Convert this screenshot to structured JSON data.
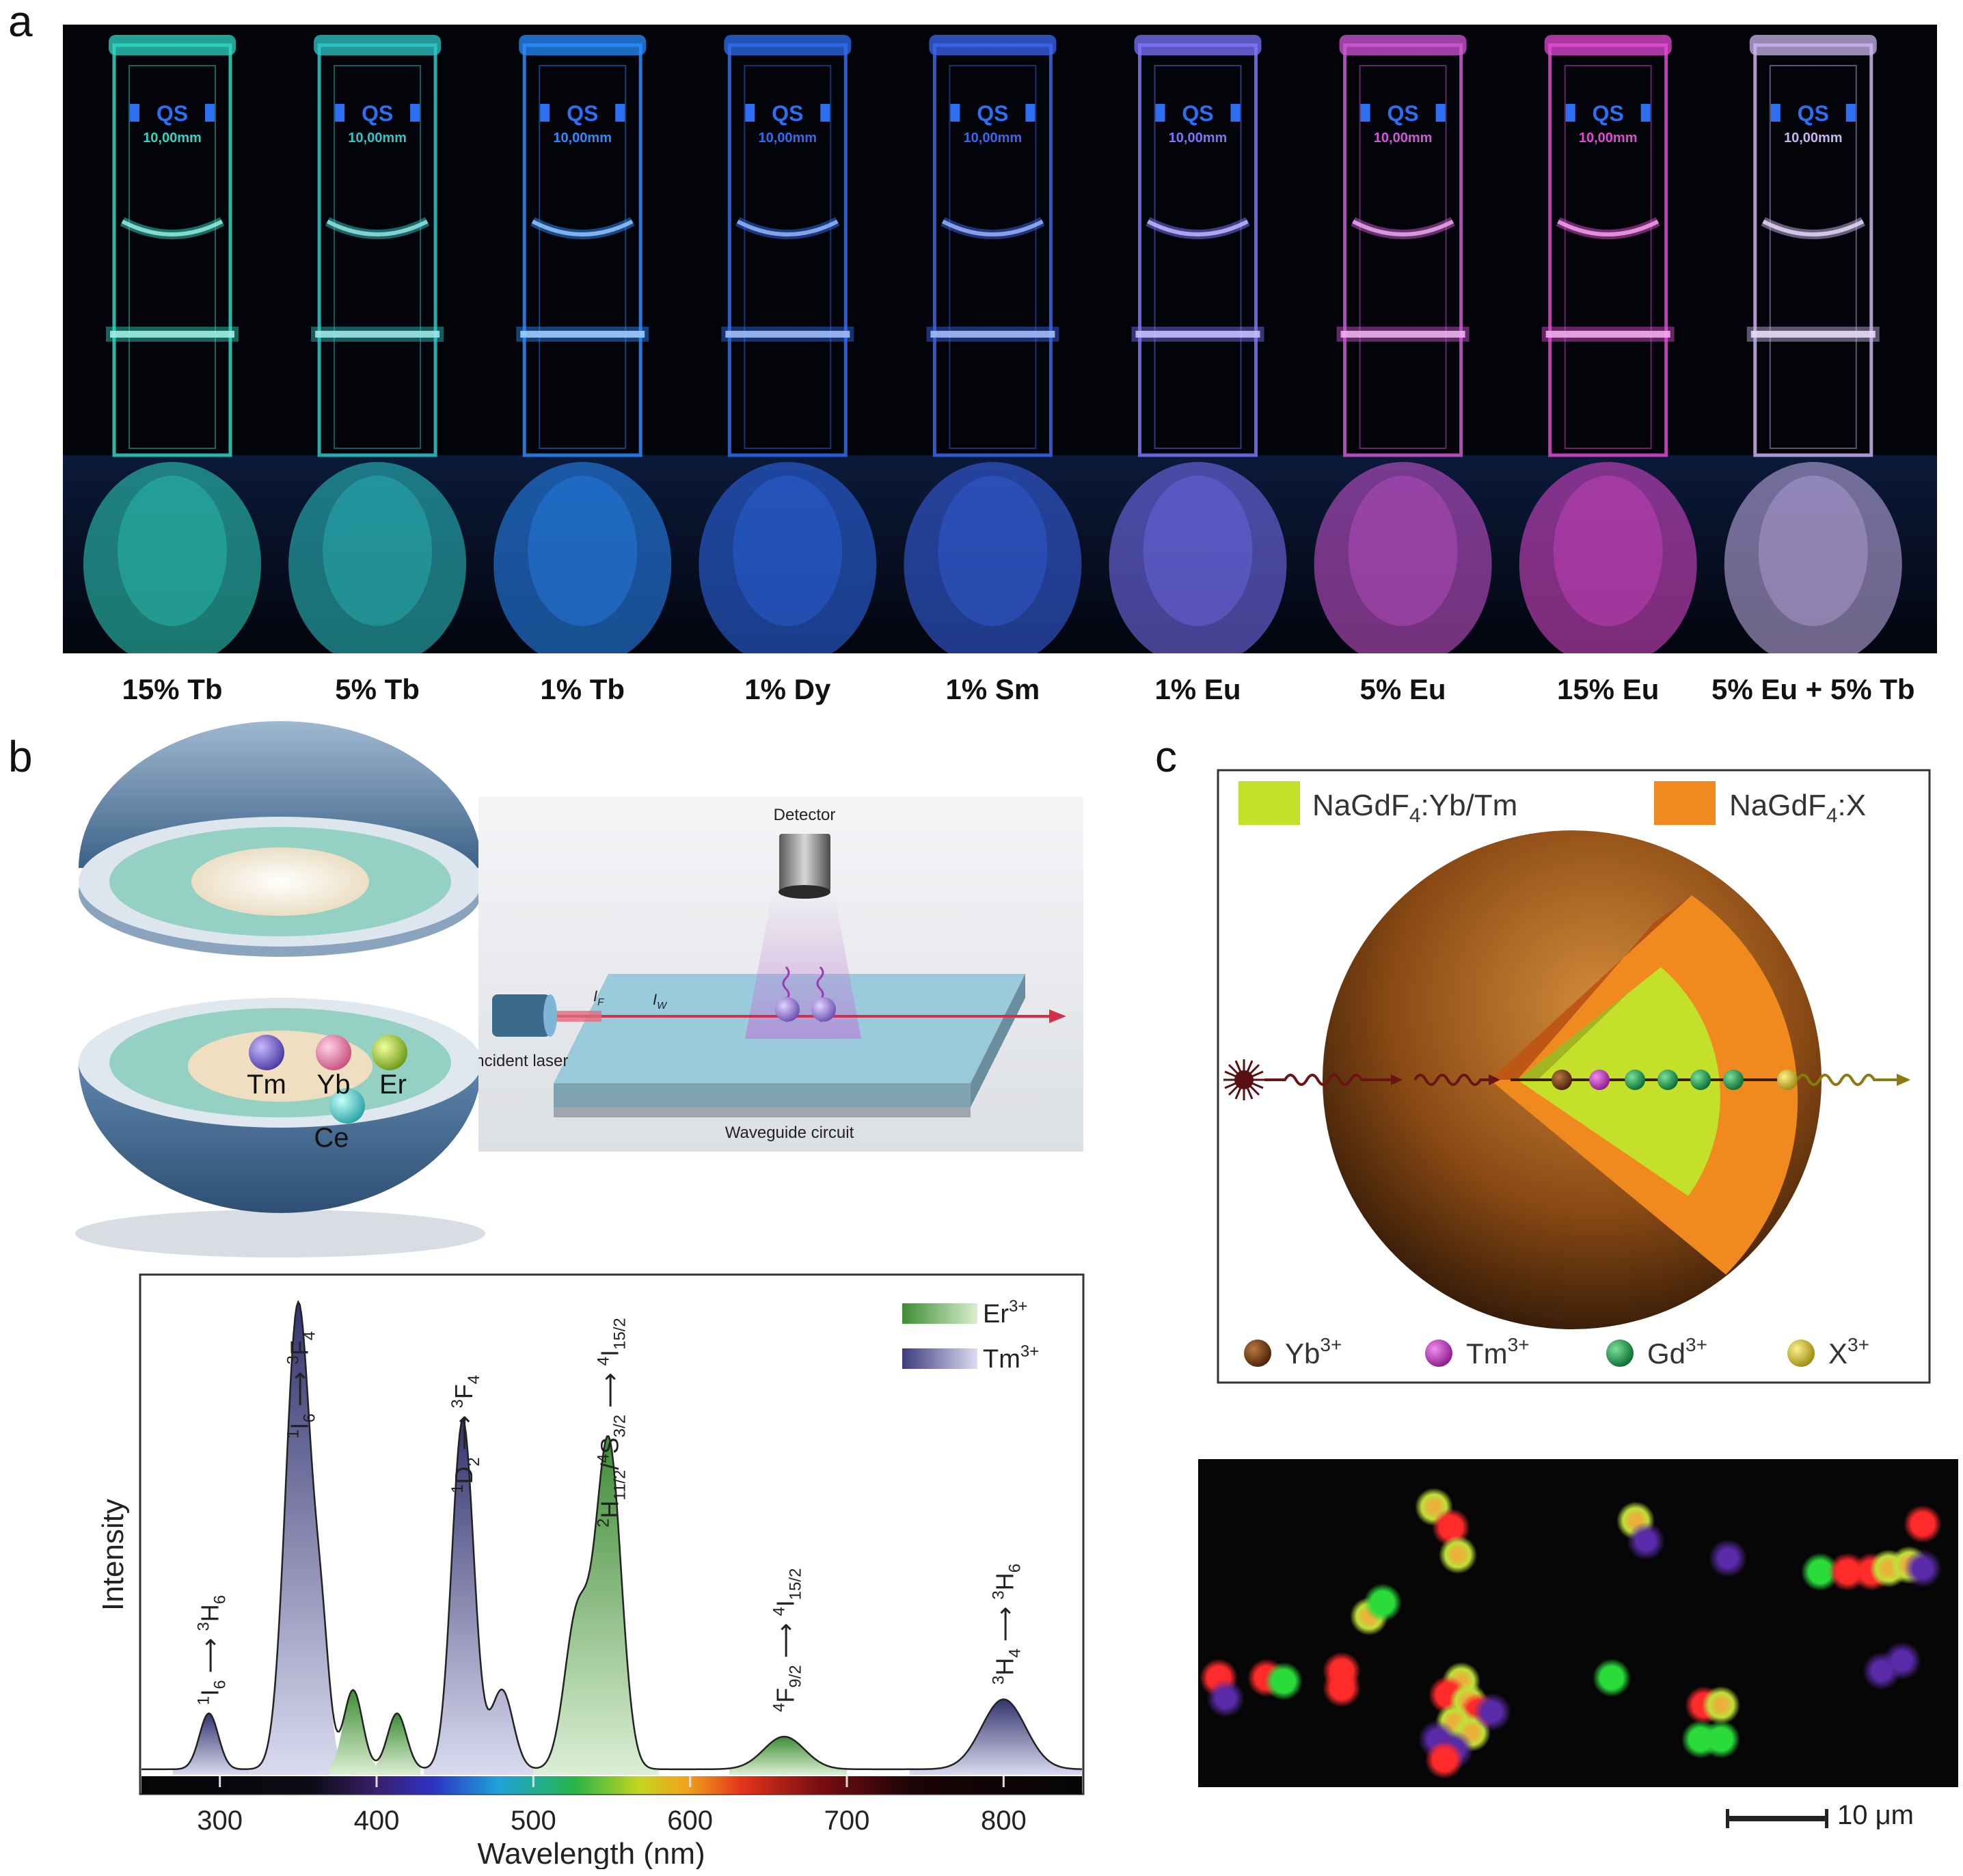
{
  "panel_a": {
    "letter": "a",
    "cuvette_text": {
      "brand": "QS",
      "path_length": "10,00mm"
    },
    "samples": [
      {
        "label": "15% Tb",
        "color": "#2fd7c2"
      },
      {
        "label": "5% Tb",
        "color": "#2ec8c8"
      },
      {
        "label": "1% Tb",
        "color": "#2a8cff"
      },
      {
        "label": "1% Dy",
        "color": "#2f6cf2"
      },
      {
        "label": "1% Sm",
        "color": "#3a66ef"
      },
      {
        "label": "1% Eu",
        "color": "#7c74ff"
      },
      {
        "label": "5% Eu",
        "color": "#d257d8"
      },
      {
        "label": "15% Eu",
        "color": "#e34ad3"
      },
      {
        "label": "5% Eu + 5% Tb",
        "color": "#c9b4ee"
      }
    ]
  },
  "panel_b": {
    "letter": "b",
    "nanoparticle_labels": {
      "tm": "Tm",
      "yb": "Yb",
      "er": "Er",
      "ce": "Ce"
    },
    "waveguide": {
      "detector": "Detector",
      "incident_laser": "Incident laser",
      "circuit": "Waveguide circuit",
      "i_f": "I",
      "i_f_sub": "F",
      "i_w": "I",
      "i_w_sub": "W"
    },
    "chart_data": {
      "type": "area",
      "title": "",
      "xlabel": "Wavelength (nm)",
      "ylabel": "Intensity",
      "xlim": [
        250,
        850
      ],
      "ylim": [
        0,
        1
      ],
      "xticks": [
        300,
        400,
        500,
        600,
        700,
        800
      ],
      "legend": [
        {
          "name": "Er",
          "sup": "3+",
          "color": "#4d9a44"
        },
        {
          "name": "Tm",
          "sup": "3+",
          "color": "#3d3b7e"
        }
      ],
      "series": [
        {
          "name": "Tm3+",
          "peaks": [
            {
              "x": 293,
              "y": 0.12
            },
            {
              "x": 350,
              "y": 1.0
            },
            {
              "x": 365,
              "y": 0.23
            },
            {
              "x": 455,
              "y": 0.75
            },
            {
              "x": 480,
              "y": 0.17
            },
            {
              "x": 800,
              "y": 0.15
            }
          ]
        },
        {
          "name": "Er3+",
          "peaks": [
            {
              "x": 385,
              "y": 0.17
            },
            {
              "x": 413,
              "y": 0.12
            },
            {
              "x": 528,
              "y": 0.33
            },
            {
              "x": 548,
              "y": 0.7
            },
            {
              "x": 660,
              "y": 0.07
            }
          ]
        }
      ],
      "annotations": [
        {
          "x": 293,
          "base": "I",
          "lsup": "1",
          "sub": "6",
          "arrow": "⟶",
          "base2": "H",
          "lsup2": "3",
          "sub2": "6"
        },
        {
          "x": 350,
          "base": "I",
          "lsup": "1",
          "sub": "6",
          "arrow": "⟶",
          "base2": "F",
          "lsup2": "3",
          "sub2": "4"
        },
        {
          "x": 455,
          "base": "D",
          "lsup": "1",
          "sub": "2",
          "arrow": "⟶",
          "base2": "F",
          "lsup2": "3",
          "sub2": "4"
        },
        {
          "x": 548,
          "base": "H",
          "lsup": "2",
          "sub": "11/2",
          "sep": "/",
          "base_b": "S",
          "lsup_b": "4",
          "sub_b": "3/2",
          "arrow": "⟶",
          "base2": "I",
          "lsup2": "4",
          "sub2": "15/2"
        },
        {
          "x": 660,
          "base": "F",
          "lsup": "4",
          "sub": "9/2",
          "arrow": "⟶",
          "base2": "I",
          "lsup2": "4",
          "sub2": "15/2"
        },
        {
          "x": 800,
          "base": "H",
          "lsup": "3",
          "sub": "4",
          "arrow": "⟶",
          "base2": "H",
          "lsup2": "3",
          "sub2": "6"
        }
      ]
    }
  },
  "panel_c": {
    "letter": "c",
    "legend_top": [
      {
        "prefix": "NaGdF",
        "sub": "4",
        "suffix": ":Yb/Tm",
        "color": "#c4e02a"
      },
      {
        "prefix": "NaGdF",
        "sub": "4",
        "suffix": ":X",
        "color": "#f08a1e"
      }
    ],
    "legend_bottom": [
      {
        "ion": "Yb",
        "sup": "3+",
        "color": "#6e3a12"
      },
      {
        "ion": "Tm",
        "sup": "3+",
        "color": "#c43ac4"
      },
      {
        "ion": "Gd",
        "sup": "3+",
        "color": "#13984a"
      },
      {
        "ion": "X",
        "sup": "3+",
        "color": "#d8c43a"
      }
    ],
    "scale_bar": "10 μm"
  }
}
